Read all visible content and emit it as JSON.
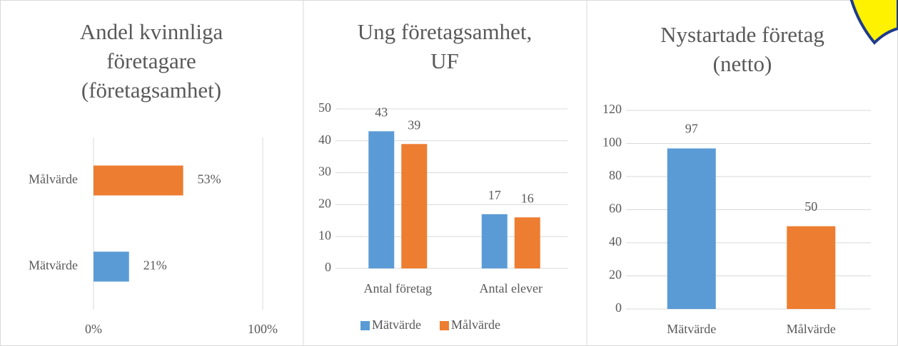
{
  "chart_data": [
    {
      "type": "hbar",
      "title": [
        "Andel kvinnliga",
        "företagare",
        "(företagsamhet)"
      ],
      "categories": [
        "Målvärde",
        "Mätvärde"
      ],
      "values": [
        53,
        21
      ],
      "value_labels": [
        "53%",
        "21%"
      ],
      "colors": [
        "#ED7D31",
        "#5B9BD5"
      ],
      "xlim": [
        0,
        100
      ],
      "xticks": [
        {
          "value": 0,
          "label": "0%"
        },
        {
          "value": 100,
          "label": "100%"
        }
      ],
      "grid": true
    },
    {
      "type": "grouped_bar",
      "title": [
        "Ung företagsamhet,",
        "UF"
      ],
      "categories": [
        "Antal företag",
        "Antal elever"
      ],
      "series": [
        {
          "name": "Mätvärde",
          "color": "#5B9BD5",
          "values": [
            43,
            17
          ]
        },
        {
          "name": "Målvärde",
          "color": "#ED7D31",
          "values": [
            39,
            16
          ]
        }
      ],
      "ylim": [
        0,
        50
      ],
      "yticks": [
        0,
        10,
        20,
        30,
        40,
        50
      ],
      "grid": true,
      "legend": "bottom"
    },
    {
      "type": "bar",
      "title": [
        "Nystartade företag",
        "(netto)"
      ],
      "categories": [
        "Mätvärde",
        "Målvärde"
      ],
      "values": [
        97,
        50
      ],
      "colors": [
        "#5B9BD5",
        "#ED7D31"
      ],
      "ylim": [
        0,
        120
      ],
      "yticks": [
        0,
        20,
        40,
        60,
        80,
        100,
        120
      ],
      "grid": true
    }
  ]
}
